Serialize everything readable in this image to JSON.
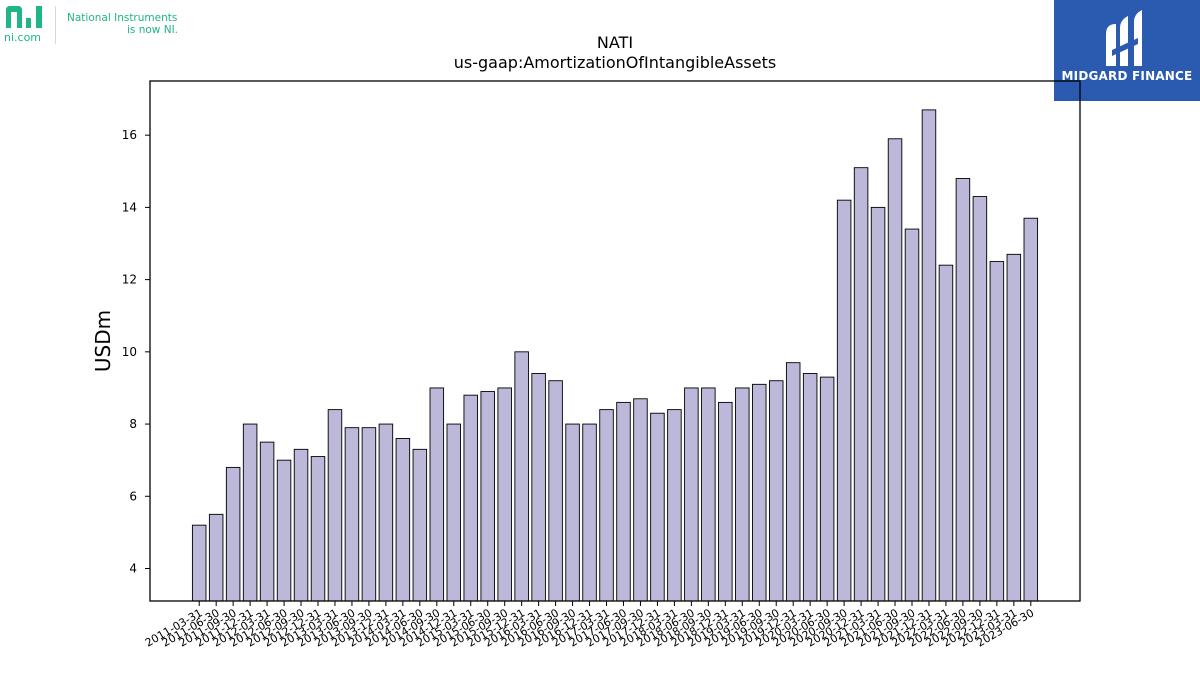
{
  "brand": {
    "ni_domain": "ni.com",
    "ni_tagline_line1": "National Instruments",
    "ni_tagline_line2": "is now NI.",
    "ni_color": "#1fb589",
    "partner_name": "MIDGARD FINANCE",
    "partner_color": "#2b5bb0"
  },
  "chart_data": {
    "type": "bar",
    "title": "NATI",
    "subtitle": "us-gaap:AmortizationOfIntangibleAssets",
    "xlabel": "",
    "ylabel": "USDm",
    "ylim": [
      3.1,
      17.5
    ],
    "yticks": [
      4,
      6,
      8,
      10,
      12,
      14,
      16
    ],
    "grid": false,
    "bar_color": "#bcb8d9",
    "categories": [
      "2011-03-31",
      "2011-06-30",
      "2011-09-30",
      "2011-12-31",
      "2012-03-31",
      "2012-06-30",
      "2012-09-30",
      "2012-12-31",
      "2013-03-31",
      "2013-06-30",
      "2013-09-30",
      "2013-12-31",
      "2014-03-31",
      "2014-06-30",
      "2014-09-30",
      "2014-12-31",
      "2015-03-31",
      "2015-06-30",
      "2015-09-30",
      "2015-12-31",
      "2016-03-31",
      "2016-06-30",
      "2016-09-30",
      "2016-12-31",
      "2017-03-31",
      "2017-06-30",
      "2017-09-30",
      "2017-12-31",
      "2018-03-31",
      "2018-06-30",
      "2018-09-30",
      "2018-12-31",
      "2019-03-31",
      "2019-06-30",
      "2019-09-30",
      "2019-12-31",
      "2020-03-31",
      "2020-06-30",
      "2020-09-30",
      "2020-12-31",
      "2021-03-31",
      "2021-06-30",
      "2021-09-30",
      "2021-12-31",
      "2022-03-31",
      "2022-06-30",
      "2022-09-30",
      "2022-12-31",
      "2023-03-31",
      "2023-06-30"
    ],
    "values": [
      5.2,
      5.5,
      6.8,
      8.0,
      7.5,
      7.0,
      7.3,
      7.1,
      8.4,
      7.9,
      7.9,
      8.0,
      7.6,
      7.3,
      9.0,
      8.0,
      8.8,
      8.9,
      9.0,
      10.0,
      9.4,
      9.2,
      8.0,
      8.0,
      8.4,
      8.6,
      8.7,
      8.3,
      8.4,
      9.0,
      9.0,
      8.6,
      9.0,
      9.1,
      9.2,
      9.7,
      9.4,
      9.3,
      14.2,
      15.1,
      14.0,
      15.9,
      13.4,
      16.7,
      12.4,
      14.8,
      14.3,
      12.5,
      12.7,
      13.7
    ]
  }
}
